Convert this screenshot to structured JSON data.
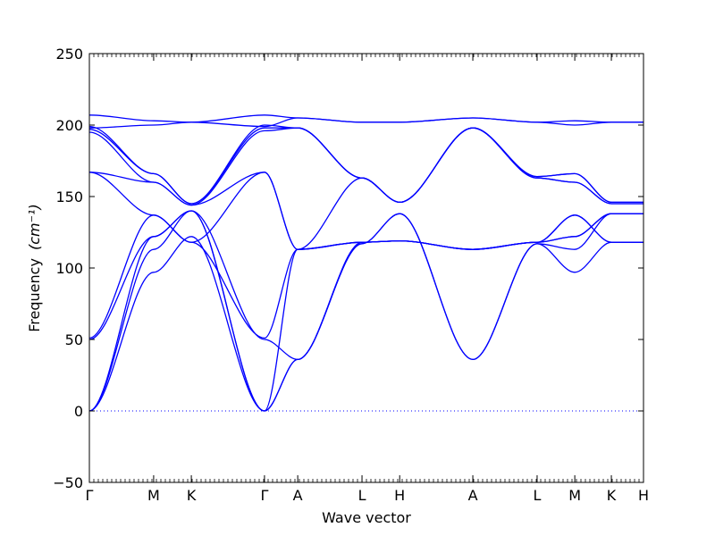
{
  "chart_data": {
    "type": "line",
    "xlabel": "Wave vector",
    "ylabel": "Frequency",
    "ylabel_unit": "(cm⁻¹)",
    "ylim": [
      -50,
      250
    ],
    "y_ticks": [
      -50,
      0,
      50,
      100,
      150,
      200,
      250
    ],
    "x_ticks": [
      "Γ",
      "M",
      "K",
      "Γ",
      "A",
      "L",
      "H",
      "A",
      "L",
      "M",
      "K",
      "H"
    ],
    "x_tick_positions": [
      0,
      0.58,
      0.92,
      1.58,
      1.88,
      2.46,
      2.8,
      3.46,
      4.04,
      4.38,
      4.71,
      5.0
    ],
    "zero_line": true,
    "line_color": "#0000ff",
    "zero_line_color": "#0000ff",
    "series": [
      {
        "x": [
          0,
          0.58,
          0.92,
          1.58,
          1.88,
          2.46,
          2.8,
          3.46,
          4.04,
          4.38,
          4.71,
          5.0
        ],
        "values": [
          0,
          97,
          122,
          0,
          36,
          117,
          138,
          36,
          117,
          97,
          118,
          118
        ]
      },
      {
        "x": [
          0,
          0.58,
          0.92,
          1.58,
          1.88,
          2.46,
          2.8,
          3.46,
          4.04,
          4.38,
          4.71,
          5.0
        ],
        "values": [
          0,
          113,
          140,
          0,
          36,
          117,
          138,
          36,
          117,
          113,
          138,
          138
        ]
      },
      {
        "x": [
          0,
          0.58,
          0.92,
          1.58,
          1.88,
          2.46,
          2.8,
          3.46,
          4.04,
          4.38,
          4.71,
          5.0
        ],
        "values": [
          0,
          122,
          140,
          0,
          113,
          118,
          119,
          113,
          118,
          122,
          138,
          138
        ]
      },
      {
        "x": [
          0,
          0.58,
          0.92,
          1.58,
          1.88,
          2.46,
          2.8,
          3.46,
          4.04,
          4.38,
          4.71,
          5.0
        ],
        "values": [
          50,
          122,
          140,
          50,
          36,
          118,
          119,
          113,
          118,
          137,
          118,
          118
        ]
      },
      {
        "x": [
          0,
          0.58,
          0.92,
          1.58,
          1.88,
          2.46,
          2.8,
          3.46,
          4.04,
          4.38,
          4.71,
          5.0
        ],
        "values": [
          51,
          137,
          118,
          51,
          113,
          118,
          119,
          113,
          118,
          137,
          118,
          118
        ]
      },
      {
        "x": [
          0,
          0.58,
          0.92,
          1.58,
          1.88,
          2.46,
          2.8,
          3.46,
          4.04,
          4.38,
          4.71,
          5.0
        ],
        "values": [
          167,
          137,
          118,
          167,
          113,
          118,
          119,
          113,
          118,
          122,
          138,
          138
        ]
      },
      {
        "x": [
          0,
          0.58,
          0.92,
          1.58,
          1.88,
          2.46,
          2.8,
          3.46,
          4.04,
          4.38,
          4.71,
          5.0
        ],
        "values": [
          167,
          160,
          144,
          167,
          113,
          163,
          146,
          198,
          163,
          160,
          145,
          145
        ]
      },
      {
        "x": [
          0,
          0.58,
          0.92,
          1.58,
          1.88,
          2.46,
          2.8,
          3.46,
          4.04,
          4.38,
          4.71,
          5.0
        ],
        "values": [
          195,
          160,
          144,
          196,
          198,
          163,
          146,
          198,
          163,
          160,
          145,
          145
        ]
      },
      {
        "x": [
          0,
          0.58,
          0.92,
          1.58,
          1.88,
          2.46,
          2.8,
          3.46,
          4.04,
          4.38,
          4.71,
          5.0
        ],
        "values": [
          197,
          166,
          145,
          198,
          198,
          163,
          146,
          198,
          164,
          166,
          146,
          146
        ]
      },
      {
        "x": [
          0,
          0.58,
          0.92,
          1.58,
          1.88,
          2.46,
          2.8,
          3.46,
          4.04,
          4.38,
          4.71,
          5.0
        ],
        "values": [
          199,
          166,
          145,
          200,
          198,
          163,
          146,
          198,
          164,
          166,
          146,
          146
        ]
      },
      {
        "x": [
          0,
          0.58,
          0.92,
          1.58,
          1.88,
          2.46,
          2.8,
          3.46,
          4.04,
          4.38,
          4.71,
          5.0
        ],
        "values": [
          198,
          200,
          202,
          199,
          205,
          202,
          202,
          205,
          202,
          200,
          202,
          202
        ]
      },
      {
        "x": [
          0,
          0.58,
          0.92,
          1.58,
          1.88,
          2.46,
          2.8,
          3.46,
          4.04,
          4.38,
          4.71,
          5.0
        ],
        "values": [
          207,
          203,
          202,
          207,
          205,
          202,
          202,
          205,
          202,
          203,
          202,
          202
        ]
      }
    ]
  }
}
